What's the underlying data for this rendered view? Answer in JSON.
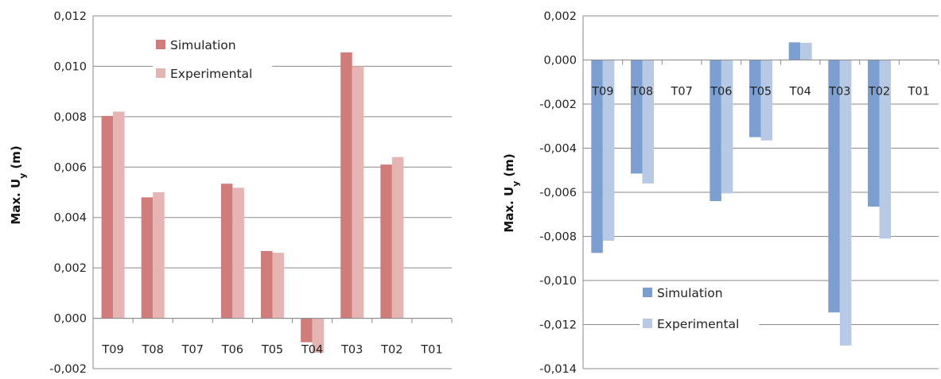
{
  "chart_data": [
    {
      "type": "bar",
      "title": "",
      "xlabel": "",
      "ylabel": "Max. U",
      "ylabel_sub": "y",
      "ylabel_unit": "(m)",
      "ylim": [
        -0.002,
        0.012
      ],
      "ytick_step": 0.002,
      "yticks": [
        "-0,002",
        "0,000",
        "0,002",
        "0,004",
        "0,006",
        "0,008",
        "0,010",
        "0,012"
      ],
      "categories": [
        "T09",
        "T08",
        "T07",
        "T06",
        "T05",
        "T04",
        "T03",
        "T02",
        "T01"
      ],
      "series": [
        {
          "name": "Simulation",
          "color": "#d07c7a",
          "values": [
            0.00803,
            0.0048,
            null,
            0.00534,
            0.00267,
            -0.00095,
            0.01055,
            0.0061,
            null
          ]
        },
        {
          "name": "Experimental",
          "color": "#e5b5b4",
          "values": [
            0.0082,
            0.005,
            null,
            0.00518,
            0.0026,
            -0.00137,
            0.01,
            0.0064,
            null
          ]
        }
      ],
      "grid": true,
      "legend_position": "top-left"
    },
    {
      "type": "bar",
      "title": "",
      "xlabel": "",
      "ylabel": "Max. U",
      "ylabel_sub": "y",
      "ylabel_unit": "(m)",
      "ylim": [
        -0.014,
        0.002
      ],
      "ytick_step": 0.002,
      "yticks": [
        "-0,014",
        "-0,012",
        "-0,010",
        "-0,008",
        "-0,006",
        "-0,004",
        "-0,002",
        "0,000",
        "0,002"
      ],
      "categories": [
        "T09",
        "T08",
        "T07",
        "T06",
        "T05",
        "T04",
        "T03",
        "T02",
        "T01"
      ],
      "series": [
        {
          "name": "Simulation",
          "color": "#7b9fd0",
          "values": [
            -0.00875,
            -0.00515,
            null,
            -0.0064,
            -0.0035,
            0.0008,
            -0.01145,
            -0.00665,
            null
          ]
        },
        {
          "name": "Experimental",
          "color": "#b7c9e4",
          "values": [
            -0.0082,
            -0.0056,
            null,
            -0.00605,
            -0.00365,
            0.00078,
            -0.01295,
            -0.0081,
            null
          ]
        }
      ],
      "grid": true,
      "legend_position": "bottom-left"
    }
  ]
}
